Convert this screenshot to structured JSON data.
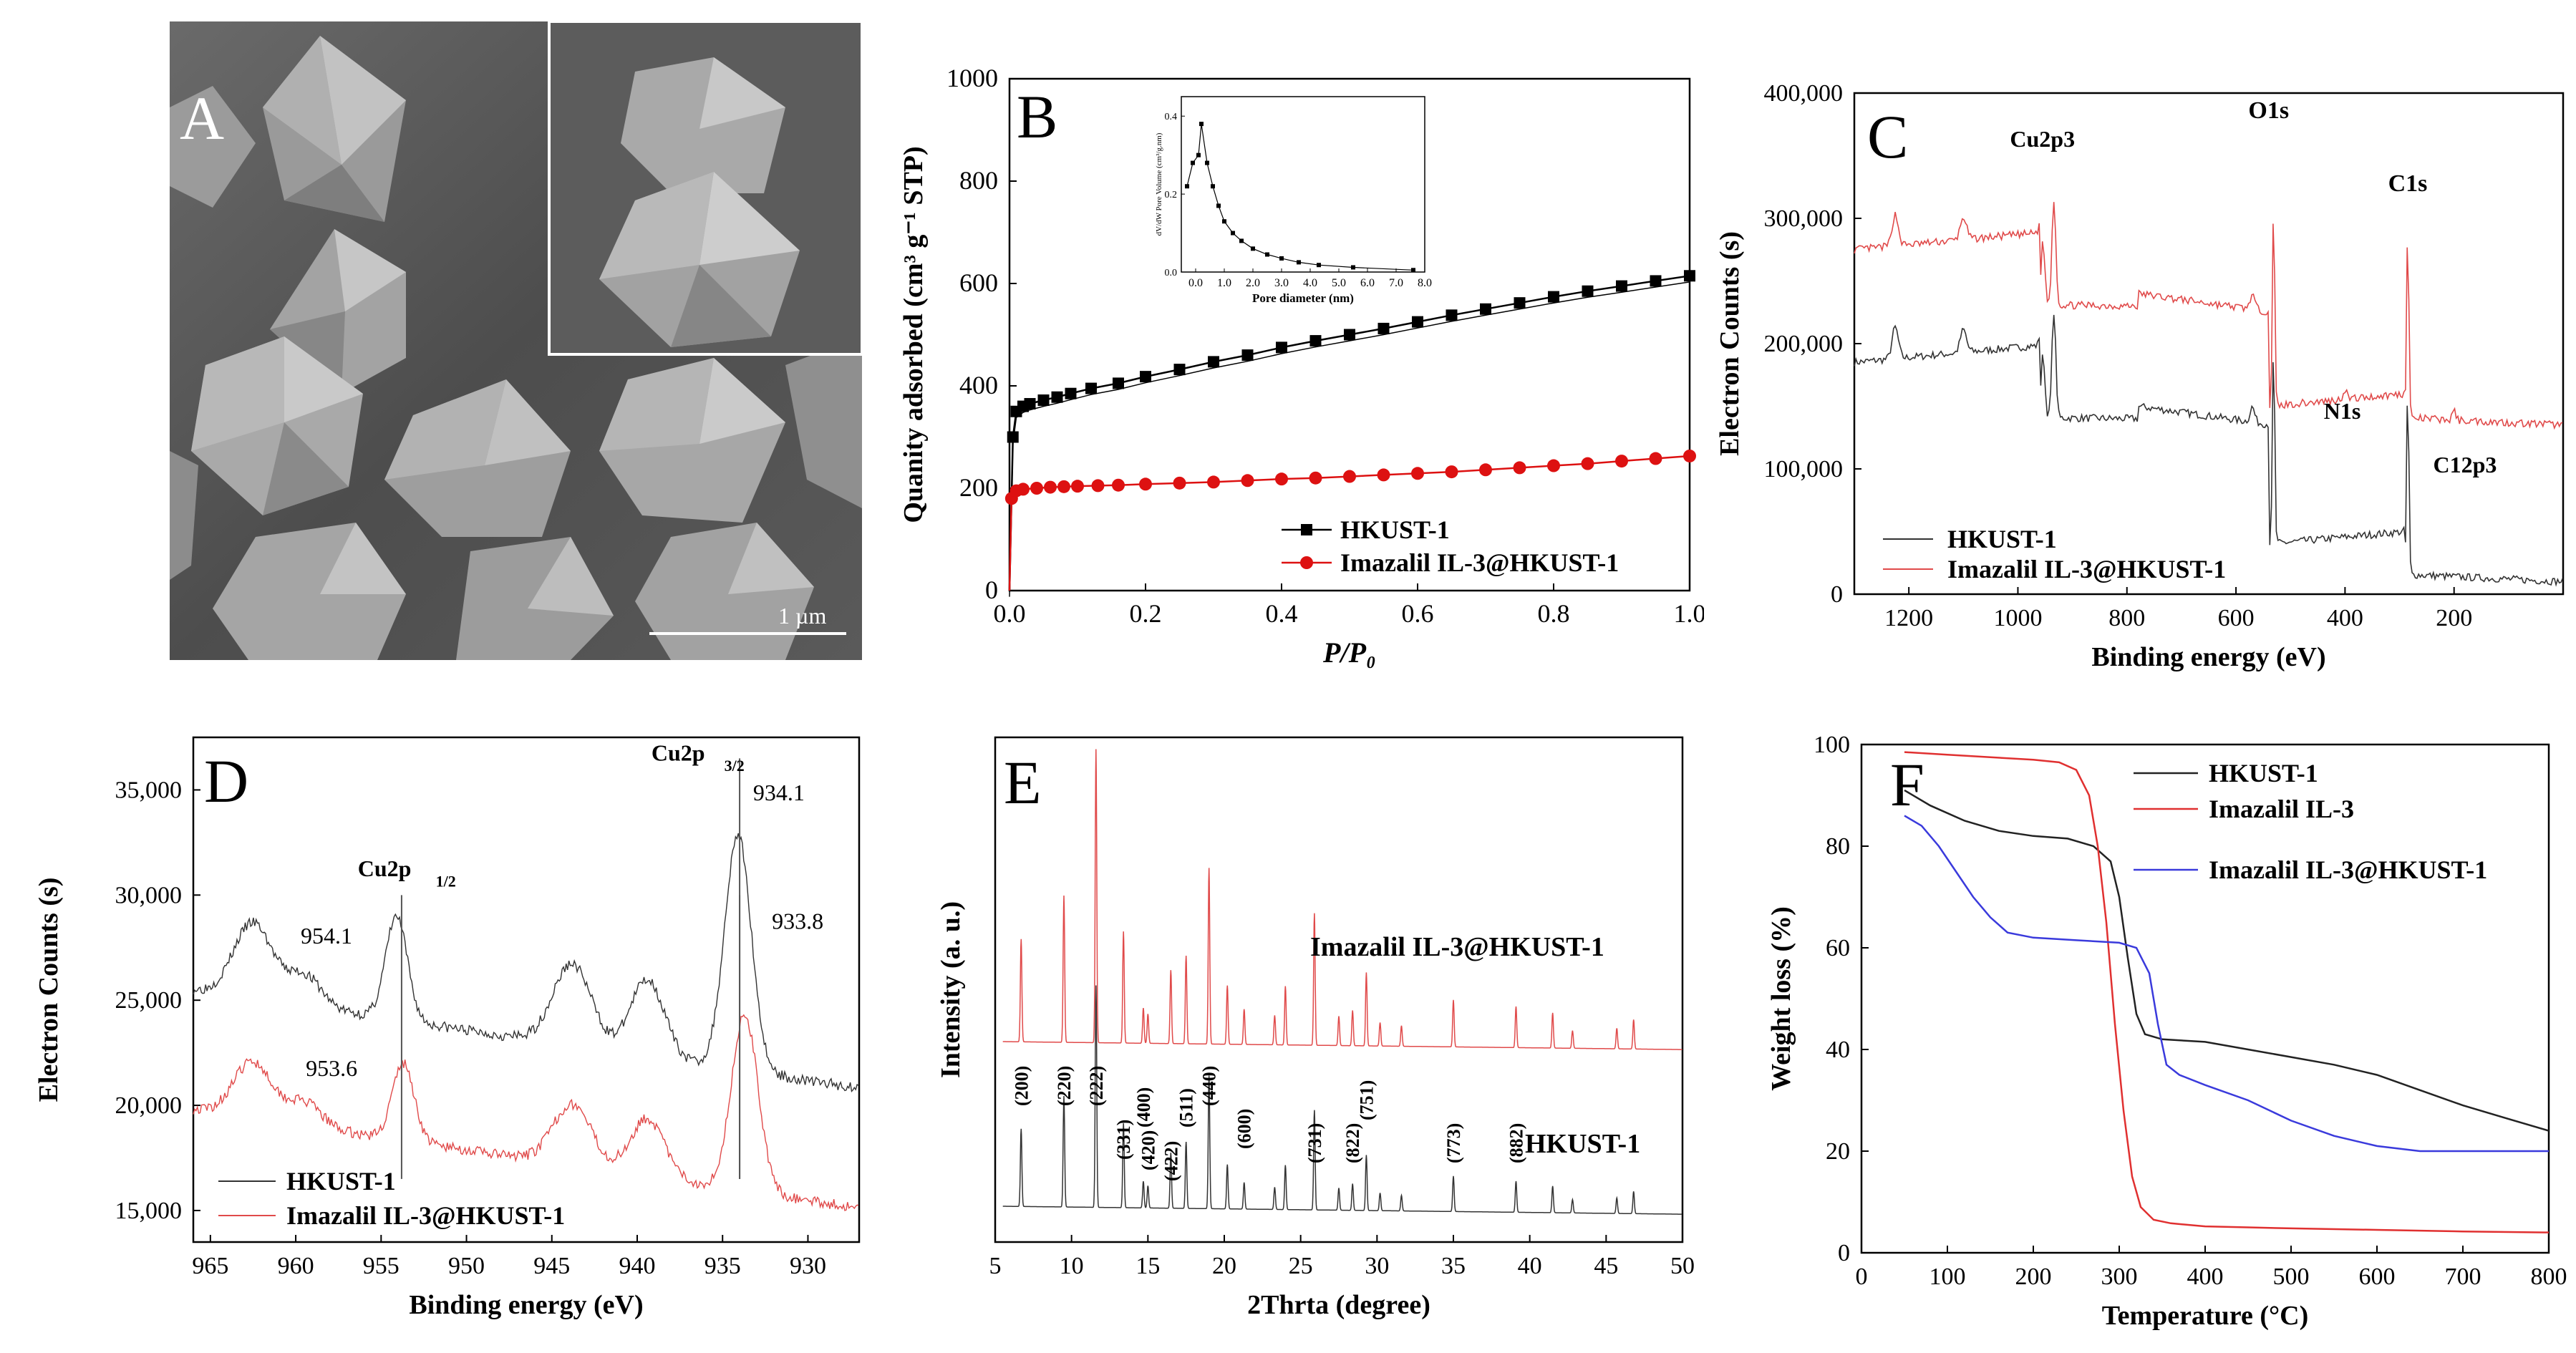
{
  "panels": {
    "A": {
      "letter": "A",
      "scale_bar_label": "1 µm"
    }
  },
  "chart_data": [
    {
      "panel": "B",
      "type": "line",
      "letter": "B",
      "xlabel": "P/P₀",
      "ylabel": "Quanity adsorbed (cm³ g⁻¹ STP)",
      "xlim": [
        0,
        1.0
      ],
      "ylim": [
        0,
        1000
      ],
      "xticks": [
        "0.0",
        "0.2",
        "0.4",
        "0.6",
        "0.8",
        "1.0"
      ],
      "yticks": [
        "0",
        "200",
        "400",
        "600",
        "800",
        "1000"
      ],
      "series": [
        {
          "name": "HKUST-1",
          "color": "#000000",
          "marker": "square",
          "x": [
            0.0,
            0.005,
            0.01,
            0.02,
            0.03,
            0.05,
            0.07,
            0.09,
            0.12,
            0.16,
            0.2,
            0.25,
            0.3,
            0.35,
            0.4,
            0.45,
            0.5,
            0.55,
            0.6,
            0.65,
            0.7,
            0.75,
            0.8,
            0.85,
            0.9,
            0.95,
            1.0
          ],
          "y": [
            0,
            300,
            350,
            360,
            365,
            372,
            378,
            385,
            395,
            405,
            418,
            432,
            447,
            460,
            475,
            488,
            500,
            512,
            525,
            538,
            550,
            562,
            574,
            585,
            595,
            605,
            615
          ]
        },
        {
          "name": "Imazalil IL-3@HKUST-1",
          "color": "#dd1111",
          "marker": "circle",
          "x": [
            0.0,
            0.003,
            0.01,
            0.02,
            0.04,
            0.06,
            0.08,
            0.1,
            0.13,
            0.16,
            0.2,
            0.25,
            0.3,
            0.35,
            0.4,
            0.45,
            0.5,
            0.55,
            0.6,
            0.65,
            0.7,
            0.75,
            0.8,
            0.85,
            0.9,
            0.95,
            1.0
          ],
          "y": [
            0,
            180,
            195,
            198,
            200,
            202,
            203,
            204,
            205,
            206,
            208,
            210,
            212,
            215,
            218,
            220,
            223,
            226,
            229,
            232,
            236,
            240,
            244,
            248,
            253,
            258,
            263
          ]
        }
      ],
      "inset": {
        "xlabel": "Pore diameter (nm)",
        "ylabel": "dV/dW Pore Volume (cm³/g.nm)",
        "xlim": [
          -0.5,
          8.0
        ],
        "ylim": [
          0,
          0.45
        ],
        "xticks": [
          "0.0",
          "1.0",
          "2.0",
          "3.0",
          "4.0",
          "5.0",
          "6.0",
          "7.0",
          "8.0"
        ],
        "yticks": [
          "0.0",
          "0.2",
          "0.4"
        ],
        "x": [
          -0.3,
          -0.1,
          0.1,
          0.2,
          0.4,
          0.6,
          0.8,
          1.0,
          1.3,
          1.6,
          2.0,
          2.5,
          3.0,
          3.6,
          4.3,
          5.5,
          7.6
        ],
        "y": [
          0.22,
          0.28,
          0.3,
          0.38,
          0.28,
          0.22,
          0.17,
          0.13,
          0.1,
          0.08,
          0.06,
          0.045,
          0.035,
          0.025,
          0.018,
          0.012,
          0.005
        ]
      }
    },
    {
      "panel": "C",
      "type": "line",
      "letter": "C",
      "xlabel": "Binding energy (eV)",
      "ylabel": "Electron Counts (s)",
      "xlim": [
        1300,
        0
      ],
      "ylim": [
        0,
        400000
      ],
      "xticks": [
        "1200",
        "1000",
        "800",
        "600",
        "400",
        "200"
      ],
      "xtick_values": [
        1200,
        1000,
        800,
        600,
        400,
        200
      ],
      "yticks": [
        "0",
        "100,000",
        "200,000",
        "300,000",
        "400,000"
      ],
      "annotations": [
        "Cu2p3",
        "O1s",
        "C1s",
        "N1s",
        "C12p3"
      ],
      "series": [
        {
          "name": "HKUST-1",
          "color": "#333333"
        },
        {
          "name": "Imazalil IL-3@HKUST-1",
          "color": "#e04a4a"
        }
      ]
    },
    {
      "panel": "D",
      "type": "line",
      "letter": "D",
      "xlabel": "Binding energy (eV)",
      "ylabel": "Electron Counts (s)",
      "xlim": [
        966,
        927
      ],
      "ylim": [
        13500,
        37500
      ],
      "xticks": [
        "965",
        "960",
        "955",
        "950",
        "945",
        "940",
        "935",
        "930"
      ],
      "xtick_values": [
        965,
        960,
        955,
        950,
        945,
        940,
        935,
        930
      ],
      "yticks": [
        "15,000",
        "20,000",
        "25,000",
        "30,000",
        "35,000"
      ],
      "ytick_values": [
        15000,
        20000,
        25000,
        30000,
        35000
      ],
      "annotations": [
        "Cu2p",
        "1/2",
        "Cu2p",
        "3/2",
        "954.1",
        "953.6",
        "934.1",
        "933.8"
      ],
      "series": [
        {
          "name": "HKUST-1",
          "color": "#333333"
        },
        {
          "name": "Imazalil IL-3@HKUST-1",
          "color": "#e04a4a"
        }
      ]
    },
    {
      "panel": "E",
      "type": "line",
      "letter": "E",
      "xlabel": "2Thrta (degree)",
      "ylabel": "Intensity (a. u.)",
      "xlim": [
        5,
        50
      ],
      "xticks": [
        "5",
        "10",
        "15",
        "20",
        "25",
        "30",
        "35",
        "40",
        "45",
        "50"
      ],
      "xtick_values": [
        5,
        10,
        15,
        20,
        25,
        30,
        35,
        40,
        45,
        50
      ],
      "peak_labels": [
        "(200)",
        "(220)",
        "(222)",
        "(331)",
        "(400)",
        "(420)",
        "(422)",
        "(511)",
        "(440)",
        "(600)",
        "(731)",
        "(822)",
        "(751)",
        "(773)",
        "(882)"
      ],
      "peak_positions": [
        6.7,
        9.5,
        11.6,
        13.4,
        14.7,
        15.0,
        16.5,
        17.5,
        19.0,
        21.3,
        25.9,
        28.4,
        29.3,
        35.0,
        39.1
      ],
      "series": [
        {
          "name": "Imazalil IL-3@HKUST-1",
          "color": "#e04a4a"
        },
        {
          "name": "HKUST-1",
          "color": "#333333"
        }
      ]
    },
    {
      "panel": "F",
      "type": "line",
      "letter": "F",
      "xlabel": "Temperature (°C)",
      "ylabel": "Weight loss (%)",
      "xlim": [
        0,
        800
      ],
      "ylim": [
        0,
        100
      ],
      "xticks": [
        "0",
        "100",
        "200",
        "300",
        "400",
        "500",
        "600",
        "700",
        "800"
      ],
      "yticks": [
        "0",
        "20",
        "40",
        "60",
        "80",
        "100"
      ],
      "series": [
        {
          "name": "HKUST-1",
          "color": "#222222",
          "x": [
            50,
            80,
            120,
            160,
            200,
            240,
            270,
            290,
            300,
            310,
            320,
            330,
            350,
            400,
            450,
            500,
            550,
            600,
            650,
            700,
            750,
            800
          ],
          "y": [
            91,
            88,
            85,
            83,
            82,
            81.5,
            80,
            77,
            70,
            58,
            47,
            43,
            42,
            41.5,
            40,
            38.5,
            37,
            35,
            32,
            29,
            26.5,
            24
          ]
        },
        {
          "name": "Imazalil IL-3",
          "color": "#e03030",
          "x": [
            50,
            100,
            150,
            200,
            230,
            250,
            265,
            275,
            285,
            295,
            305,
            315,
            325,
            340,
            360,
            400,
            450,
            500,
            600,
            700,
            800
          ],
          "y": [
            98.5,
            98,
            97.5,
            97,
            96.5,
            95,
            90,
            80,
            65,
            45,
            28,
            15,
            9,
            6.5,
            5.8,
            5.2,
            5,
            4.8,
            4.5,
            4.2,
            4
          ]
        },
        {
          "name": "Imazalil IL-3@HKUST-1",
          "color": "#3a3adc",
          "x": [
            50,
            70,
            90,
            110,
            130,
            150,
            170,
            200,
            250,
            300,
            320,
            335,
            345,
            355,
            370,
            400,
            450,
            500,
            550,
            600,
            650,
            700,
            800
          ],
          "y": [
            86,
            84,
            80,
            75,
            70,
            66,
            63,
            62,
            61.5,
            61,
            60,
            55,
            45,
            37,
            35,
            33,
            30,
            26,
            23,
            21,
            20,
            20,
            20
          ]
        }
      ]
    }
  ]
}
